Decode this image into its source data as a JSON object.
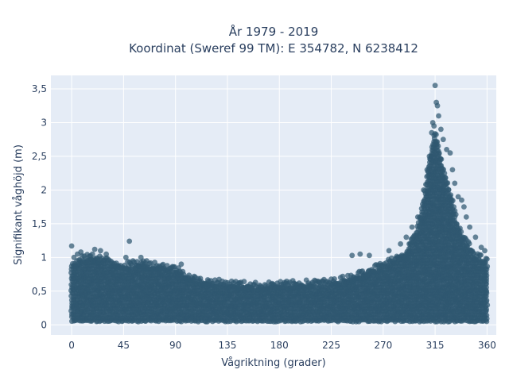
{
  "chart_data": {
    "type": "scatter",
    "title_line1": "År 1979 - 2019",
    "title_line2": "Koordinat (Sweref 99 TM): E 354782, N 6238412",
    "xlabel": "Vågriktning (grader)",
    "ylabel": "Signifikant våghöjd (m)",
    "xlim": [
      -18,
      368
    ],
    "ylim": [
      -0.15,
      3.7
    ],
    "xticks": [
      0,
      45,
      90,
      135,
      180,
      225,
      270,
      315,
      360
    ],
    "xtick_labels": [
      "0",
      "45",
      "90",
      "135",
      "180",
      "225",
      "270",
      "315",
      "360"
    ],
    "yticks": [
      0,
      0.5,
      1,
      1.5,
      2,
      2.5,
      3,
      3.5
    ],
    "ytick_labels": [
      "0",
      "0,5",
      "1",
      "1,5",
      "2",
      "2,5",
      "3",
      "3,5"
    ],
    "grid": true,
    "marker_color": "#2f5770",
    "plot_background": "#e5ecf6",
    "envelope": {
      "x": [
        0,
        10,
        20,
        30,
        45,
        60,
        75,
        90,
        100,
        110,
        135,
        160,
        180,
        200,
        225,
        240,
        250,
        260,
        270,
        280,
        290,
        300,
        305,
        310,
        313,
        315,
        317,
        320,
        325,
        330,
        335,
        340,
        345,
        350,
        355,
        360
      ],
      "y_max": [
        0.85,
        0.95,
        0.98,
        0.92,
        0.85,
        0.88,
        0.85,
        0.8,
        0.7,
        0.62,
        0.58,
        0.55,
        0.56,
        0.58,
        0.6,
        0.66,
        0.72,
        0.8,
        0.85,
        0.95,
        1.05,
        1.4,
        1.8,
        2.4,
        2.7,
        2.8,
        2.7,
        2.4,
        2.1,
        1.8,
        1.4,
        1.25,
        1.12,
        1.0,
        0.95,
        0.9
      ]
    },
    "outliers": [
      [
        0,
        1.17
      ],
      [
        2,
        1.0
      ],
      [
        5,
        1.05
      ],
      [
        8,
        1.08
      ],
      [
        20,
        1.12
      ],
      [
        25,
        1.1
      ],
      [
        30,
        1.05
      ],
      [
        47,
        1.0
      ],
      [
        50,
        1.24
      ],
      [
        60,
        1.0
      ],
      [
        65,
        0.95
      ],
      [
        95,
        0.9
      ],
      [
        243,
        1.03
      ],
      [
        250,
        1.05
      ],
      [
        258,
        1.03
      ],
      [
        275,
        1.1
      ],
      [
        285,
        1.2
      ],
      [
        290,
        1.3
      ],
      [
        295,
        1.45
      ],
      [
        300,
        1.6
      ],
      [
        305,
        2.0
      ],
      [
        308,
        2.3
      ],
      [
        310,
        2.5
      ],
      [
        312,
        2.85
      ],
      [
        313,
        3.0
      ],
      [
        314,
        2.95
      ],
      [
        315,
        3.55
      ],
      [
        316,
        3.3
      ],
      [
        317,
        3.25
      ],
      [
        318,
        3.1
      ],
      [
        320,
        2.9
      ],
      [
        322,
        2.75
      ],
      [
        325,
        2.6
      ],
      [
        328,
        2.55
      ],
      [
        330,
        2.3
      ],
      [
        332,
        2.1
      ],
      [
        335,
        1.9
      ],
      [
        338,
        1.85
      ],
      [
        340,
        1.75
      ],
      [
        342,
        1.6
      ],
      [
        345,
        1.45
      ],
      [
        350,
        1.3
      ],
      [
        355,
        1.15
      ],
      [
        358,
        1.1
      ]
    ]
  }
}
